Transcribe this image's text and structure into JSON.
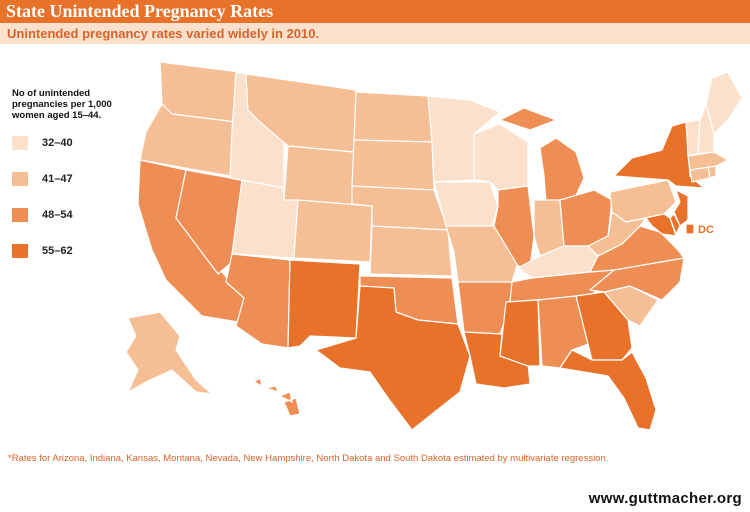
{
  "header": {
    "title": "State Unintended Pregnancy Rates",
    "subtitle": "Unintended pregnancy rates varied widely in 2010."
  },
  "legend": {
    "title": "No of unintended pregnancies per 1,000 women aged 15–44.",
    "items": [
      {
        "label": "32–40",
        "color": "#FBE1CC"
      },
      {
        "label": "41–47",
        "color": "#F5BE94"
      },
      {
        "label": "48–54",
        "color": "#EE8D54"
      },
      {
        "label": "55–62",
        "color": "#E8722A"
      }
    ]
  },
  "map": {
    "dc_label": "DC",
    "states": [
      {
        "id": "WA",
        "bin": 1
      },
      {
        "id": "OR",
        "bin": 1
      },
      {
        "id": "CA",
        "bin": 2
      },
      {
        "id": "NV",
        "bin": 2
      },
      {
        "id": "ID",
        "bin": 0
      },
      {
        "id": "MT",
        "bin": 1
      },
      {
        "id": "WY",
        "bin": 1
      },
      {
        "id": "UT",
        "bin": 0
      },
      {
        "id": "AZ",
        "bin": 2
      },
      {
        "id": "CO",
        "bin": 1
      },
      {
        "id": "NM",
        "bin": 3
      },
      {
        "id": "ND",
        "bin": 1
      },
      {
        "id": "SD",
        "bin": 1
      },
      {
        "id": "NE",
        "bin": 1
      },
      {
        "id": "KS",
        "bin": 1
      },
      {
        "id": "OK",
        "bin": 2
      },
      {
        "id": "TX",
        "bin": 3
      },
      {
        "id": "MN",
        "bin": 0
      },
      {
        "id": "IA",
        "bin": 0
      },
      {
        "id": "MO",
        "bin": 1
      },
      {
        "id": "AR",
        "bin": 2
      },
      {
        "id": "LA",
        "bin": 3
      },
      {
        "id": "WI",
        "bin": 0
      },
      {
        "id": "IL",
        "bin": 2
      },
      {
        "id": "MI",
        "bin": 2
      },
      {
        "id": "IN",
        "bin": 1
      },
      {
        "id": "OH",
        "bin": 2
      },
      {
        "id": "KY",
        "bin": 0
      },
      {
        "id": "TN",
        "bin": 2
      },
      {
        "id": "MS",
        "bin": 3
      },
      {
        "id": "AL",
        "bin": 2
      },
      {
        "id": "GA",
        "bin": 3
      },
      {
        "id": "FL",
        "bin": 3
      },
      {
        "id": "SC",
        "bin": 1
      },
      {
        "id": "NC",
        "bin": 2
      },
      {
        "id": "VA",
        "bin": 2
      },
      {
        "id": "WV",
        "bin": 1
      },
      {
        "id": "PA",
        "bin": 1
      },
      {
        "id": "NY",
        "bin": 3
      },
      {
        "id": "NJ",
        "bin": 3
      },
      {
        "id": "DE",
        "bin": 3
      },
      {
        "id": "MD",
        "bin": 3
      },
      {
        "id": "DC",
        "bin": 3
      },
      {
        "id": "CT",
        "bin": 1
      },
      {
        "id": "RI",
        "bin": 1
      },
      {
        "id": "MA",
        "bin": 1
      },
      {
        "id": "VT",
        "bin": 0
      },
      {
        "id": "NH",
        "bin": 0
      },
      {
        "id": "ME",
        "bin": 0
      },
      {
        "id": "AK",
        "bin": 1
      },
      {
        "id": "HI",
        "bin": 2
      }
    ]
  },
  "footnote": "*Rates for Arizona, Indiana, Kansas, Montana, Nevada, New Hampshire, North Dakota and South Dakota estimated by multivariate regression.",
  "site": "www.guttmacher.org"
}
